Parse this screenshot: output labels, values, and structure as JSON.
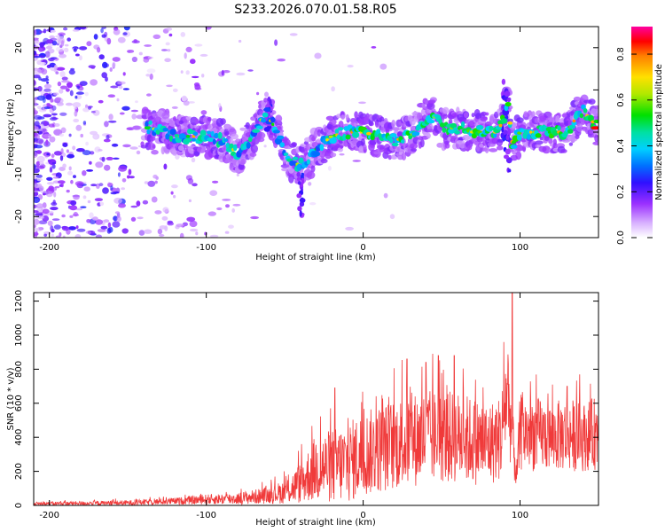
{
  "title": "S233.2026.070.01.58.R05",
  "colors": {
    "spectrogram_base": "#b070ee",
    "snr_line": "#f03a3a",
    "colormap": [
      "#ffffff",
      "#d8b0ff",
      "#9b30ff",
      "#3010ff",
      "#00b4ff",
      "#00e8e8",
      "#00e000",
      "#b0e800",
      "#ffe000",
      "#ff8000",
      "#ff0000",
      "#ff00a0"
    ]
  },
  "chart_data": [
    {
      "type": "heatmap",
      "name": "spectrogram",
      "title": "S233.2026.070.01.58.R05",
      "xlabel": "Height of straight line (km)",
      "ylabel": "Frequency (Hz)",
      "xlim": [
        -210,
        150
      ],
      "ylim": [
        -25,
        25
      ],
      "xticks": [
        -200,
        -100,
        0,
        100
      ],
      "yticks": [
        20,
        10,
        0,
        -10,
        -20
      ],
      "colorbar": {
        "label": "Normalized spectral amplitude",
        "range": [
          0.0,
          0.92
        ],
        "ticks": [
          "0.0",
          "0.2",
          "0.4",
          "0.6",
          "0.8"
        ]
      },
      "ridge": {
        "x": [
          -135,
          -120,
          -100,
          -90,
          -80,
          -75,
          -70,
          -62,
          -55,
          -50,
          -45,
          -40,
          -35,
          -30,
          -20,
          -10,
          0,
          10,
          20,
          30,
          40,
          45,
          50,
          60,
          70,
          80,
          85,
          90,
          92,
          95,
          100,
          110,
          120,
          130,
          135,
          140,
          150
        ],
        "frequency": [
          1,
          -1,
          -1,
          -2,
          -5,
          -3,
          -1,
          5,
          0,
          -5,
          -7,
          -8,
          -6,
          -4,
          -1,
          0,
          0,
          -1,
          -2,
          -1,
          3,
          4,
          1,
          1,
          0,
          0,
          0,
          3,
          8,
          -3,
          0,
          0,
          0,
          0,
          3,
          5,
          1
        ]
      }
    },
    {
      "type": "line",
      "name": "snr",
      "xlabel": "Height of straight line (km)",
      "ylabel": "SNR (10 * v/v)",
      "xlim": [
        -210,
        150
      ],
      "ylim": [
        0,
        1250
      ],
      "xticks": [
        -200,
        -100,
        0,
        100
      ],
      "yticks": [
        0,
        200,
        400,
        600,
        800,
        1000,
        1200
      ],
      "envelope": {
        "x": [
          -210,
          -150,
          -120,
          -100,
          -80,
          -60,
          -50,
          -40,
          -30,
          -20,
          -10,
          0,
          20,
          40,
          60,
          80,
          88,
          92,
          95,
          98,
          100,
          110,
          120,
          130,
          140,
          150
        ],
        "mean": [
          10,
          15,
          25,
          35,
          40,
          60,
          80,
          130,
          220,
          230,
          250,
          300,
          360,
          400,
          400,
          360,
          400,
          700,
          380,
          180,
          430,
          420,
          400,
          420,
          400,
          430
        ],
        "spread": [
          10,
          15,
          20,
          30,
          35,
          50,
          70,
          120,
          200,
          220,
          240,
          250,
          270,
          280,
          270,
          250,
          250,
          350,
          200,
          100,
          230,
          220,
          200,
          220,
          200,
          220
        ]
      },
      "peaks": [
        {
          "x": 95,
          "y": 1250
        },
        {
          "x": 48,
          "y": 880
        },
        {
          "x": 28,
          "y": 860
        },
        {
          "x": 58,
          "y": 880
        },
        {
          "x": 40,
          "y": 840
        },
        {
          "x": 130,
          "y": 700
        },
        {
          "x": -18,
          "y": 690
        }
      ]
    }
  ]
}
